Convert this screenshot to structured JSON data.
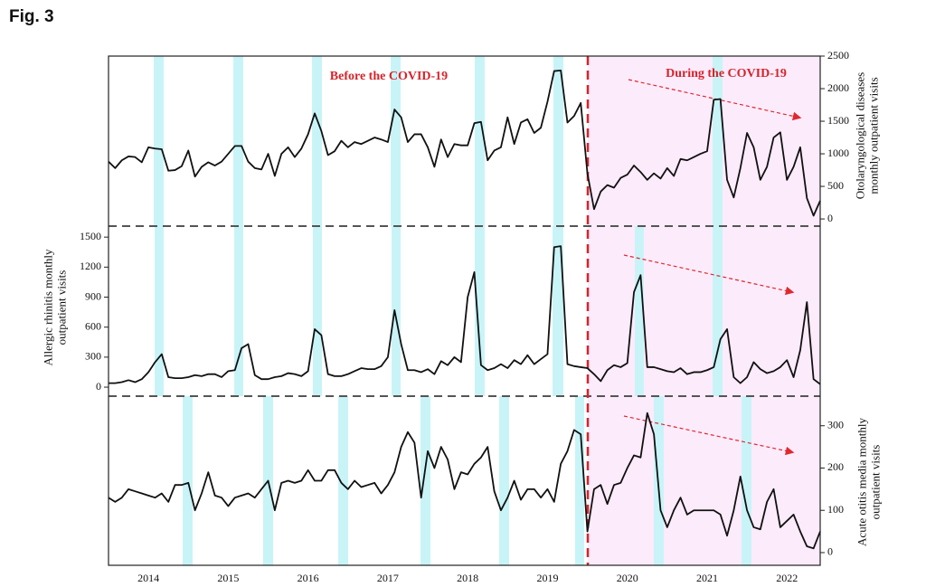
{
  "chart_data": [
    {
      "type": "line",
      "title": "Fig. 3",
      "color": "#111111",
      "annotations": [
        "Before the COVID-19",
        "During the COVID-19"
      ],
      "ylabel": [
        "Otolaryngological diseases",
        "monthly outpatient visits"
      ],
      "yaxis_side": "right",
      "ylim": [
        -110,
        2500
      ],
      "yticks": [
        0,
        500,
        1000,
        1500,
        2000,
        2500
      ],
      "values": [
        880,
        780,
        900,
        960,
        950,
        870,
        1100,
        1080,
        1070,
        740,
        750,
        810,
        1050,
        650,
        800,
        870,
        820,
        880,
        1000,
        1120,
        1120,
        880,
        780,
        760,
        1000,
        660,
        1000,
        1100,
        950,
        1080,
        1300,
        1620,
        1350,
        980,
        1040,
        1200,
        1100,
        1180,
        1150,
        1200,
        1250,
        1220,
        1180,
        1680,
        1560,
        1180,
        1300,
        1300,
        1100,
        800,
        1220,
        950,
        1150,
        1130,
        1130,
        1470,
        1490,
        900,
        1050,
        1100,
        1560,
        1150,
        1480,
        1530,
        1320,
        1400,
        1800,
        2270,
        2280,
        1480,
        1580,
        1780,
        700,
        150,
        420,
        520,
        480,
        630,
        680,
        820,
        720,
        600,
        700,
        620,
        780,
        660,
        920,
        900,
        950,
        1000,
        1040,
        1830,
        1840,
        600,
        330,
        780,
        1320,
        1100,
        600,
        800,
        1250,
        1330,
        600,
        800,
        1100,
        320,
        50,
        280
      ]
    },
    {
      "type": "line",
      "color": "#111111",
      "ylabel": [
        "Allergic rhinitis monthly",
        "outpatient visits"
      ],
      "yaxis_side": "left",
      "ylim": [
        -90,
        1610
      ],
      "yticks": [
        0,
        300,
        600,
        900,
        1200,
        1500
      ],
      "values": [
        40,
        40,
        50,
        70,
        50,
        80,
        150,
        250,
        330,
        100,
        90,
        90,
        100,
        120,
        110,
        130,
        130,
        100,
        160,
        170,
        390,
        430,
        120,
        80,
        80,
        100,
        110,
        140,
        130,
        110,
        160,
        580,
        520,
        130,
        110,
        110,
        130,
        160,
        190,
        180,
        180,
        210,
        300,
        770,
        430,
        170,
        170,
        150,
        180,
        130,
        260,
        220,
        300,
        250,
        900,
        1150,
        220,
        170,
        190,
        230,
        190,
        270,
        230,
        320,
        230,
        280,
        330,
        1400,
        1410,
        230,
        210,
        200,
        190,
        130,
        60,
        170,
        220,
        200,
        240,
        950,
        1120,
        200,
        200,
        180,
        160,
        150,
        190,
        130,
        150,
        150,
        170,
        200,
        480,
        580,
        100,
        40,
        100,
        250,
        180,
        140,
        160,
        200,
        270,
        100,
        370,
        850,
        80,
        30
      ]
    },
    {
      "type": "line",
      "color": "#111111",
      "ylabel": [
        "Acute otitis media monthly",
        "outpatient visits"
      ],
      "yaxis_side": "right",
      "ylim": [
        -30,
        370
      ],
      "yticks": [
        0,
        100,
        200,
        300
      ],
      "categories": [
        null,
        null,
        null,
        null,
        null,
        null,
        "2014",
        null,
        null,
        null,
        null,
        null,
        null,
        null,
        null,
        null,
        null,
        null,
        "2015",
        null,
        null,
        null,
        null,
        null,
        null,
        null,
        null,
        null,
        null,
        null,
        "2016",
        null,
        null,
        null,
        null,
        null,
        null,
        null,
        null,
        null,
        null,
        null,
        "2017",
        null,
        null,
        null,
        null,
        null,
        null,
        null,
        null,
        null,
        null,
        null,
        "2018",
        null,
        null,
        null,
        null,
        null,
        null,
        null,
        null,
        null,
        null,
        null,
        "2019",
        null,
        null,
        null,
        null,
        null,
        null,
        null,
        null,
        null,
        null,
        null,
        "2020",
        null,
        null,
        null,
        null,
        null,
        null,
        null,
        null,
        null,
        null,
        null,
        "2021",
        null,
        null,
        null,
        null,
        null,
        null,
        null,
        null,
        null,
        null,
        null,
        "2022",
        null,
        null,
        null,
        null,
        null
      ],
      "values": [
        130,
        120,
        130,
        150,
        145,
        140,
        135,
        130,
        140,
        120,
        160,
        160,
        165,
        100,
        140,
        190,
        135,
        130,
        110,
        130,
        135,
        140,
        130,
        150,
        170,
        100,
        165,
        170,
        165,
        170,
        195,
        170,
        170,
        195,
        195,
        165,
        150,
        170,
        155,
        160,
        165,
        140,
        160,
        190,
        250,
        285,
        260,
        130,
        240,
        200,
        250,
        220,
        150,
        190,
        185,
        210,
        225,
        250,
        145,
        100,
        130,
        170,
        125,
        150,
        150,
        130,
        150,
        120,
        210,
        240,
        290,
        280,
        50,
        150,
        160,
        115,
        160,
        165,
        200,
        230,
        225,
        330,
        280,
        100,
        60,
        100,
        130,
        90,
        100,
        100,
        100,
        100,
        90,
        40,
        100,
        180,
        100,
        60,
        55,
        120,
        150,
        60,
        75,
        90,
        50,
        15,
        10,
        50
      ]
    }
  ]
}
